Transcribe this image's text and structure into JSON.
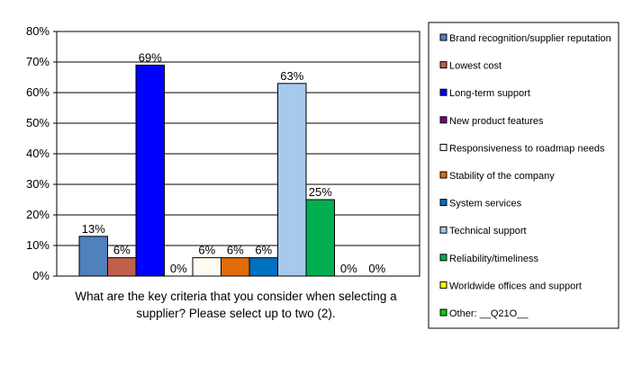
{
  "chart_data": {
    "type": "bar",
    "xlabel": "What are the key criteria that you consider when selecting a supplier? Please select up to two (2).",
    "ylim": [
      0,
      80
    ],
    "yticks": [
      "0%",
      "10%",
      "20%",
      "30%",
      "40%",
      "50%",
      "60%",
      "70%",
      "80%"
    ],
    "grid": true,
    "legend_position": "right",
    "series": [
      {
        "name": "Brand recognition/supplier reputation",
        "value": 13,
        "label": "13%",
        "color": "#4f81bd"
      },
      {
        "name": "Lowest cost",
        "value": 6,
        "label": "6%",
        "color": "#c0604a"
      },
      {
        "name": "Long-term support",
        "value": 69,
        "label": "69%",
        "color": "#0000ff"
      },
      {
        "name": "New product features",
        "value": 0,
        "label": "0%",
        "color": "#7f007f"
      },
      {
        "name": "Responsiveness to roadmap needs",
        "value": 6,
        "label": "6%",
        "color": "#fffbf0"
      },
      {
        "name": "Stability of the company",
        "value": 6,
        "label": "6%",
        "color": "#e26b0a"
      },
      {
        "name": "System services",
        "value": 6,
        "label": "6%",
        "color": "#0070c0"
      },
      {
        "name": "Technical support",
        "value": 63,
        "label": "63%",
        "color": "#a6c9ec"
      },
      {
        "name": "Reliability/timeliness",
        "value": 25,
        "label": "25%",
        "color": "#00b050"
      },
      {
        "name": "Worldwide offices and support",
        "value": 0,
        "label": "0%",
        "color": "#ffff00"
      },
      {
        "name": "Other: __Q21O__",
        "value": 0,
        "label": "0%",
        "color": "#00cc00"
      }
    ]
  }
}
